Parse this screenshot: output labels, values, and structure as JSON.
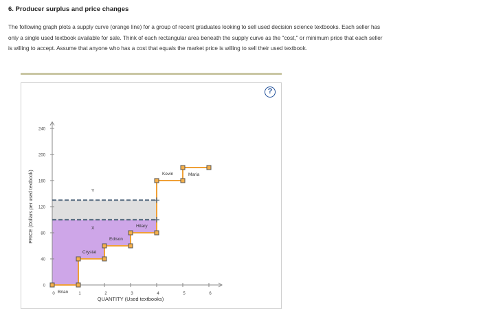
{
  "header": {
    "title": "6. Producer surplus and price changes"
  },
  "instructions": {
    "line1": "The following graph plots a supply curve (orange line) for a group of recent graduates looking to sell used decision science textbooks. Each seller has",
    "line2": "only a single used textbook available for sale. Think of each rectangular area beneath the supply curve as the \"cost,\" or minimum price that each seller",
    "line3": "is willing to accept. Assume that anyone who has a cost that equals the market price is willing to sell their used textbook."
  },
  "help": {
    "label": "?"
  },
  "graph": {
    "ylabel": "PRICE (Dollars per used textbook)",
    "xlabel": "QUANTITY (Used textbooks)",
    "yticks": [
      "0",
      "40",
      "80",
      "120",
      "160",
      "200",
      "240"
    ],
    "xticks": [
      "0",
      "1",
      "2",
      "3",
      "4",
      "5",
      "6"
    ],
    "sellers": [
      {
        "name": "Brian",
        "cost": 0
      },
      {
        "name": "Crystal",
        "cost": 40
      },
      {
        "name": "Edison",
        "cost": 60
      },
      {
        "name": "Hilary",
        "cost": 80
      },
      {
        "name": "Kevin",
        "cost": 160
      },
      {
        "name": "Maria",
        "cost": 180
      }
    ],
    "price_lines": [
      {
        "label": "Y",
        "price": 130
      },
      {
        "label": "X",
        "price": 100
      }
    ],
    "colors": {
      "supply": "#f0a036",
      "surplus_fill": "#c597e4",
      "price_line": "#5a6e82",
      "marker_fill": "#f5b04a"
    }
  }
}
